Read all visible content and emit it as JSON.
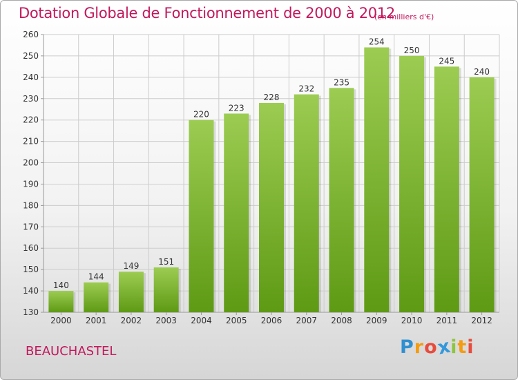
{
  "chart_data": {
    "type": "bar",
    "title": "Dotation Globale de Fonctionnement de 2000 à 2012",
    "subtitle": "(en milliers d'€)",
    "categories": [
      "2000",
      "2001",
      "2002",
      "2003",
      "2004",
      "2005",
      "2006",
      "2007",
      "2008",
      "2009",
      "2010",
      "2011",
      "2012"
    ],
    "values": [
      140,
      144,
      149,
      151,
      220,
      223,
      228,
      232,
      235,
      254,
      250,
      245,
      240
    ],
    "xlabel": "",
    "ylabel": "",
    "ylim": [
      130,
      260
    ],
    "yticks": [
      130,
      140,
      150,
      160,
      170,
      180,
      190,
      200,
      210,
      220,
      230,
      240,
      250,
      260
    ],
    "grid": true,
    "colors": {
      "bar_top": "#9ccc52",
      "bar_bottom": "#5e9a14",
      "grid": "#cccccc",
      "title": "#c2185b",
      "text": "#333333"
    }
  },
  "commune": "BEAUCHASTEL",
  "logo": {
    "letters": [
      {
        "char": "P",
        "color": "#2f8fd0"
      },
      {
        "char": "r",
        "color": "#f39c12"
      },
      {
        "char": "o",
        "color": "#e74c3c"
      },
      {
        "char": "x",
        "color": "#3498db"
      },
      {
        "char": "i",
        "color": "#8cc63f"
      },
      {
        "char": "t",
        "color": "#f39c12"
      },
      {
        "char": "i",
        "color": "#e74c3c"
      }
    ]
  }
}
